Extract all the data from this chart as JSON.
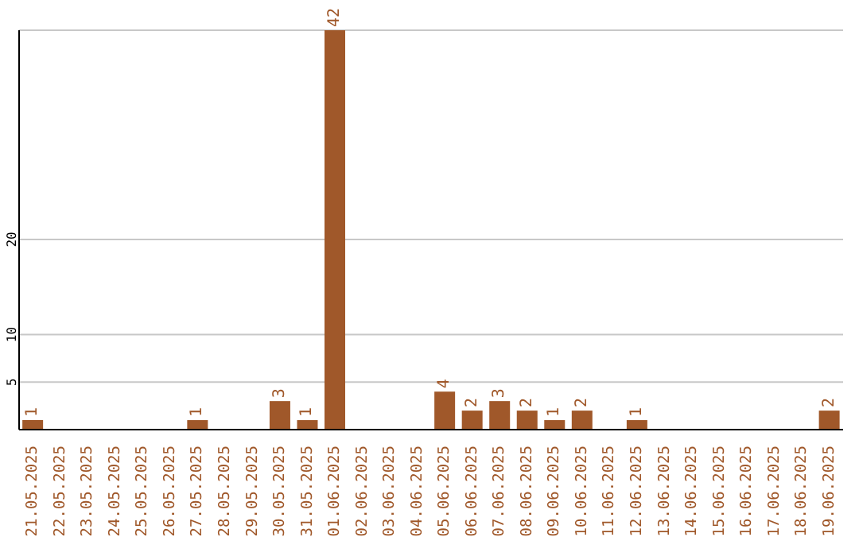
{
  "chart_data": {
    "type": "bar",
    "categories": [
      "21.05.2025",
      "22.05.2025",
      "23.05.2025",
      "24.05.2025",
      "25.05.2025",
      "26.05.2025",
      "27.05.2025",
      "28.05.2025",
      "29.05.2025",
      "30.05.2025",
      "31.05.2025",
      "01.06.2025",
      "02.06.2025",
      "03.06.2025",
      "04.06.2025",
      "05.06.2025",
      "06.06.2025",
      "07.06.2025",
      "08.06.2025",
      "09.06.2025",
      "10.06.2025",
      "11.06.2025",
      "12.06.2025",
      "13.06.2025",
      "14.06.2025",
      "15.06.2025",
      "16.06.2025",
      "17.06.2025",
      "18.06.2025",
      "19.06.2025"
    ],
    "values": [
      1,
      0,
      0,
      0,
      0,
      0,
      1,
      0,
      0,
      3,
      1,
      42,
      0,
      0,
      0,
      4,
      2,
      3,
      2,
      1,
      2,
      0,
      1,
      0,
      0,
      0,
      0,
      0,
      0,
      2
    ],
    "value_labels": [
      "1",
      null,
      null,
      null,
      null,
      null,
      "1",
      null,
      null,
      "3",
      "1",
      "42",
      null,
      null,
      null,
      "4",
      "2",
      "3",
      "2",
      "1",
      "2",
      null,
      "1",
      null,
      null,
      null,
      null,
      null,
      null,
      "2"
    ],
    "color": "#a0582a",
    "ylim": [
      0,
      42
    ],
    "yticks": [
      5,
      10,
      20
    ],
    "grid": "y"
  }
}
